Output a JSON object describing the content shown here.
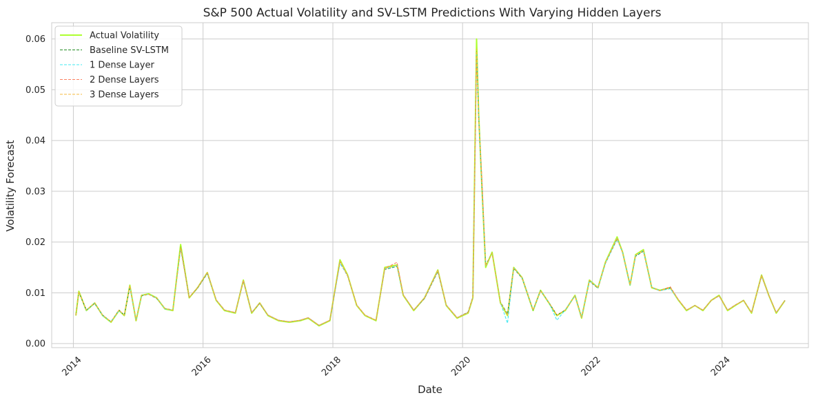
{
  "chart_data": {
    "type": "line",
    "title": "S&P 500 Actual Volatility and SV-LSTM Predictions With Varying Hidden Layers",
    "xlabel": "Date",
    "ylabel": "Volatility Forecast",
    "x_range": [
      "2013-09-01",
      "2025-05-01"
    ],
    "ylim": [
      -0.0008,
      0.0632
    ],
    "grid": true,
    "legend_position": "upper-left",
    "x_ticks": [
      {
        "date": "2014-01-01",
        "label": "2014"
      },
      {
        "date": "2016-01-01",
        "label": "2016"
      },
      {
        "date": "2018-01-01",
        "label": "2018"
      },
      {
        "date": "2020-01-01",
        "label": "2020"
      },
      {
        "date": "2022-01-01",
        "label": "2022"
      },
      {
        "date": "2024-01-01",
        "label": "2024"
      }
    ],
    "y_ticks": [
      {
        "value": 0.0,
        "label": "0.00"
      },
      {
        "value": 0.01,
        "label": "0.01"
      },
      {
        "value": 0.02,
        "label": "0.02"
      },
      {
        "value": 0.03,
        "label": "0.03"
      },
      {
        "value": 0.04,
        "label": "0.04"
      },
      {
        "value": 0.05,
        "label": "0.05"
      },
      {
        "value": 0.06,
        "label": "0.06"
      }
    ],
    "x": [
      "2014-01-15",
      "2014-02-01",
      "2014-03-15",
      "2014-05-01",
      "2014-06-15",
      "2014-08-01",
      "2014-09-15",
      "2014-10-15",
      "2014-11-15",
      "2014-12-20",
      "2015-01-20",
      "2015-03-01",
      "2015-04-15",
      "2015-06-01",
      "2015-07-15",
      "2015-08-28",
      "2015-10-15",
      "2015-12-01",
      "2016-01-25",
      "2016-03-15",
      "2016-05-01",
      "2016-07-01",
      "2016-08-15",
      "2016-10-01",
      "2016-11-15",
      "2017-01-01",
      "2017-03-01",
      "2017-05-01",
      "2017-07-01",
      "2017-08-15",
      "2017-10-15",
      "2017-12-15",
      "2018-02-10",
      "2018-03-25",
      "2018-05-15",
      "2018-07-01",
      "2018-09-01",
      "2018-10-20",
      "2018-12-28",
      "2019-02-01",
      "2019-04-01",
      "2019-06-01",
      "2019-08-15",
      "2019-10-01",
      "2019-12-01",
      "2020-02-01",
      "2020-02-28",
      "2020-03-20",
      "2020-04-01",
      "2020-04-20",
      "2020-05-10",
      "2020-06-15",
      "2020-08-01",
      "2020-09-10",
      "2020-10-15",
      "2020-12-01",
      "2021-02-01",
      "2021-03-15",
      "2021-05-01",
      "2021-06-15",
      "2021-08-01",
      "2021-09-25",
      "2021-11-01",
      "2021-12-15",
      "2022-02-01",
      "2022-03-15",
      "2022-05-20",
      "2022-06-20",
      "2022-08-01",
      "2022-09-01",
      "2022-10-15",
      "2022-12-01",
      "2023-01-15",
      "2023-03-15",
      "2023-05-01",
      "2023-06-15",
      "2023-08-01",
      "2023-09-15",
      "2023-11-01",
      "2023-12-15",
      "2024-02-01",
      "2024-03-15",
      "2024-05-01",
      "2024-06-15",
      "2024-08-10",
      "2024-09-20",
      "2024-11-01",
      "2024-12-20"
    ],
    "series": [
      {
        "name": "Actual Volatility",
        "color": "#adff2f",
        "dashed": false,
        "values": [
          0.0055,
          0.0103,
          0.0065,
          0.008,
          0.0055,
          0.0042,
          0.0065,
          0.0055,
          0.0115,
          0.0045,
          0.0095,
          0.0098,
          0.009,
          0.0068,
          0.0065,
          0.0195,
          0.009,
          0.011,
          0.014,
          0.0085,
          0.0065,
          0.006,
          0.0125,
          0.006,
          0.008,
          0.0055,
          0.0045,
          0.0042,
          0.0045,
          0.005,
          0.0035,
          0.0045,
          0.0165,
          0.0135,
          0.0075,
          0.0055,
          0.0045,
          0.015,
          0.0155,
          0.0095,
          0.0065,
          0.009,
          0.0145,
          0.0075,
          0.005,
          0.006,
          0.009,
          0.06,
          0.045,
          0.03,
          0.015,
          0.018,
          0.008,
          0.0055,
          0.015,
          0.013,
          0.0065,
          0.0105,
          0.008,
          0.0055,
          0.0065,
          0.0095,
          0.005,
          0.0125,
          0.011,
          0.016,
          0.021,
          0.018,
          0.0115,
          0.0175,
          0.0185,
          0.011,
          0.0105,
          0.011,
          0.0085,
          0.0065,
          0.0075,
          0.0065,
          0.0085,
          0.0095,
          0.0065,
          0.0075,
          0.0085,
          0.006,
          0.0135,
          0.0095,
          0.006,
          0.0085
        ]
      },
      {
        "name": "Baseline SV-LSTM",
        "color": "#228b22",
        "dashed": true,
        "values": [
          0.0057,
          0.0101,
          0.0066,
          0.0079,
          0.0056,
          0.0043,
          0.0066,
          0.0056,
          0.0112,
          0.0046,
          0.0094,
          0.0097,
          0.0089,
          0.0069,
          0.0066,
          0.019,
          0.0091,
          0.0109,
          0.0138,
          0.0086,
          0.0066,
          0.0061,
          0.0123,
          0.0061,
          0.0079,
          0.0056,
          0.0046,
          0.0043,
          0.0046,
          0.0051,
          0.0036,
          0.0046,
          0.016,
          0.0133,
          0.0076,
          0.0056,
          0.0046,
          0.0146,
          0.0152,
          0.0096,
          0.0066,
          0.0089,
          0.0142,
          0.0076,
          0.0051,
          0.0062,
          0.0092,
          0.0575,
          0.0445,
          0.0305,
          0.0155,
          0.0178,
          0.0082,
          0.0058,
          0.0148,
          0.0129,
          0.0066,
          0.0104,
          0.0081,
          0.0056,
          0.0066,
          0.0094,
          0.0052,
          0.0123,
          0.0109,
          0.0158,
          0.0206,
          0.0179,
          0.0116,
          0.0172,
          0.0182,
          0.0111,
          0.0104,
          0.011,
          0.0086,
          0.0066,
          0.0075,
          0.0066,
          0.0085,
          0.0094,
          0.0066,
          0.0076,
          0.0085,
          0.0061,
          0.0133,
          0.0095,
          0.0061,
          0.0085
        ]
      },
      {
        "name": "1 Dense Layer",
        "color": "#40e8f0",
        "dashed": true,
        "values": [
          0.0056,
          0.0102,
          0.0065,
          0.008,
          0.0055,
          0.0043,
          0.0065,
          0.0056,
          0.0113,
          0.0046,
          0.0095,
          0.0097,
          0.009,
          0.0068,
          0.0066,
          0.0185,
          0.0091,
          0.011,
          0.0139,
          0.0086,
          0.0066,
          0.0061,
          0.0124,
          0.0061,
          0.008,
          0.0056,
          0.0046,
          0.0043,
          0.0046,
          0.0051,
          0.0036,
          0.0046,
          0.0158,
          0.0134,
          0.0076,
          0.0056,
          0.0046,
          0.0147,
          0.0153,
          0.0096,
          0.0066,
          0.009,
          0.0143,
          0.0076,
          0.0051,
          0.0061,
          0.0091,
          0.057,
          0.0448,
          0.03,
          0.0152,
          0.0178,
          0.0081,
          0.004,
          0.0149,
          0.013,
          0.0066,
          0.0104,
          0.0081,
          0.0046,
          0.0066,
          0.0094,
          0.0051,
          0.0124,
          0.011,
          0.0158,
          0.0207,
          0.0179,
          0.0115,
          0.0173,
          0.0183,
          0.0111,
          0.0104,
          0.0108,
          0.0086,
          0.0066,
          0.0075,
          0.0066,
          0.0085,
          0.0094,
          0.0066,
          0.0076,
          0.0085,
          0.0061,
          0.0134,
          0.0095,
          0.0061,
          0.0085
        ]
      },
      {
        "name": "2 Dense Layers",
        "color": "#fa8060",
        "dashed": true,
        "values": [
          0.0056,
          0.0102,
          0.0066,
          0.008,
          0.0056,
          0.0043,
          0.0066,
          0.0056,
          0.0114,
          0.0046,
          0.0095,
          0.0097,
          0.009,
          0.0069,
          0.0066,
          0.0188,
          0.0091,
          0.011,
          0.014,
          0.0086,
          0.0066,
          0.0061,
          0.0124,
          0.0061,
          0.008,
          0.0056,
          0.0046,
          0.0043,
          0.0046,
          0.0051,
          0.0036,
          0.0046,
          0.0162,
          0.0134,
          0.0076,
          0.0056,
          0.0046,
          0.0148,
          0.016,
          0.0096,
          0.0066,
          0.009,
          0.0144,
          0.0076,
          0.0051,
          0.0061,
          0.0091,
          0.0565,
          0.0442,
          0.032,
          0.0153,
          0.0178,
          0.0081,
          0.0056,
          0.0149,
          0.013,
          0.0066,
          0.0104,
          0.0081,
          0.0056,
          0.0066,
          0.0094,
          0.0051,
          0.0124,
          0.011,
          0.0159,
          0.0208,
          0.0179,
          0.0116,
          0.0174,
          0.0183,
          0.0111,
          0.0104,
          0.0112,
          0.0086,
          0.0066,
          0.0075,
          0.0066,
          0.0085,
          0.0094,
          0.0066,
          0.0076,
          0.0085,
          0.0061,
          0.0134,
          0.0095,
          0.0061,
          0.0085
        ]
      },
      {
        "name": "3 Dense Layers",
        "color": "#f5b83d",
        "dashed": true,
        "values": [
          0.0056,
          0.0102,
          0.0066,
          0.008,
          0.0056,
          0.0043,
          0.0066,
          0.0056,
          0.0114,
          0.0046,
          0.0095,
          0.0097,
          0.009,
          0.0069,
          0.0066,
          0.0189,
          0.0091,
          0.011,
          0.014,
          0.0086,
          0.0066,
          0.0061,
          0.0124,
          0.0061,
          0.008,
          0.0056,
          0.0046,
          0.0043,
          0.0046,
          0.0051,
          0.0036,
          0.0046,
          0.0162,
          0.0134,
          0.0076,
          0.0056,
          0.0046,
          0.0148,
          0.0154,
          0.0096,
          0.0066,
          0.009,
          0.0144,
          0.0076,
          0.0051,
          0.0061,
          0.0091,
          0.058,
          0.0446,
          0.0302,
          0.0153,
          0.0178,
          0.0081,
          0.0056,
          0.0149,
          0.013,
          0.0066,
          0.0104,
          0.0081,
          0.0056,
          0.0066,
          0.0094,
          0.0051,
          0.0124,
          0.011,
          0.0159,
          0.0208,
          0.0179,
          0.0116,
          0.0174,
          0.0183,
          0.0111,
          0.0104,
          0.011,
          0.0086,
          0.0066,
          0.0075,
          0.0066,
          0.0085,
          0.0094,
          0.0066,
          0.0076,
          0.0085,
          0.0061,
          0.0134,
          0.0095,
          0.0061,
          0.0085
        ]
      }
    ]
  }
}
